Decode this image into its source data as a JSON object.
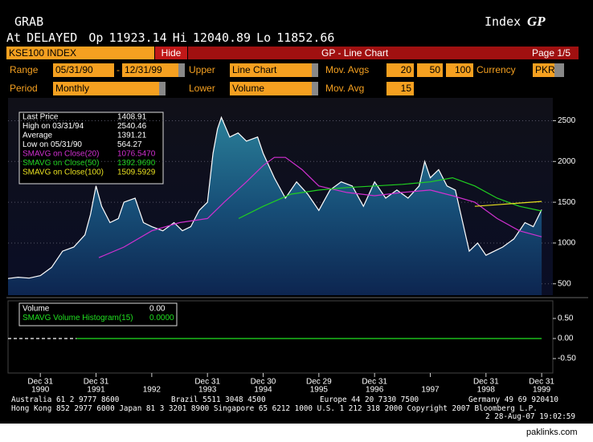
{
  "header": {
    "title": "GRAB",
    "index_label": "Index",
    "index_code": "GP",
    "status": "At DELAYED",
    "open_label": "Op",
    "open": "11923.14",
    "high_label": "Hi",
    "high": "12040.89",
    "low_label": "Lo",
    "low": "11852.66"
  },
  "toolbar": {
    "security": "KSE100 INDEX",
    "hide": "Hide",
    "screen": "GP - Line Chart",
    "page": "Page 1/5"
  },
  "controls": {
    "range_label": "Range",
    "start": "05/31/90",
    "sep": "-",
    "end": "12/31/99",
    "upper_label": "Upper",
    "upper": "Line Chart",
    "mov_avgs_label": "Mov. Avgs",
    "mov_avgs": [
      "20",
      "50",
      "100"
    ],
    "currency_label": "Currency",
    "currency": "PKR",
    "period_label": "Period",
    "period": "Monthly",
    "lower_label": "Lower",
    "lower": "Volume",
    "mov_avg_label": "Mov. Avg",
    "mov_avg": "15"
  },
  "chart_data": [
    {
      "type": "line",
      "grid": true,
      "xlim": [
        1990.42,
        2000.2
      ],
      "ylim": [
        360,
        2780
      ],
      "yticks": [
        500,
        1000,
        1500,
        2000,
        2500
      ],
      "xticks": [
        {
          "value": 1991.0,
          "day": "Dec 31",
          "label": "1990"
        },
        {
          "value": 1992.0,
          "day": "Dec 31",
          "label": "1991"
        },
        {
          "value": 1993.0,
          "label": "1992"
        },
        {
          "value": 1994.0,
          "day": "Dec 31",
          "label": "1993"
        },
        {
          "value": 1995.0,
          "day": "Dec 30",
          "label": "1994"
        },
        {
          "value": 1996.0,
          "day": "Dec 29",
          "label": "1995"
        },
        {
          "value": 1997.0,
          "day": "Dec 31",
          "label": "1996"
        },
        {
          "value": 1998.0,
          "label": "1997"
        },
        {
          "value": 1999.0,
          "day": "Dec 31",
          "label": "1998"
        },
        {
          "value": 2000.0,
          "day": "Dec 31",
          "label": "1999"
        }
      ],
      "stats": [
        {
          "label": "High on 03/31/94",
          "value": "2540.46"
        },
        {
          "label": "Average",
          "value": "1391.21"
        },
        {
          "label": "Low on 05/31/90",
          "value": "564.27"
        }
      ],
      "series": [
        {
          "name": "Last Price",
          "legend_value": "1408.91",
          "color": "#ffffff",
          "area": true,
          "x": [
            1990.42,
            1990.6,
            1990.8,
            1991.0,
            1991.2,
            1991.4,
            1991.6,
            1991.8,
            1991.9,
            1992.0,
            1992.1,
            1992.25,
            1992.4,
            1992.5,
            1992.7,
            1992.85,
            1993.0,
            1993.2,
            1993.4,
            1993.55,
            1993.7,
            1993.85,
            1994.0,
            1994.1,
            1994.18,
            1994.25,
            1994.4,
            1994.55,
            1994.7,
            1994.9,
            1995.0,
            1995.2,
            1995.4,
            1995.6,
            1995.8,
            1996.0,
            1996.2,
            1996.4,
            1996.6,
            1996.8,
            1997.0,
            1997.2,
            1997.4,
            1997.6,
            1997.8,
            1997.9,
            1998.0,
            1998.15,
            1998.3,
            1998.45,
            1998.55,
            1998.7,
            1998.85,
            1999.0,
            1999.15,
            1999.3,
            1999.5,
            1999.7,
            1999.85,
            2000.0
          ],
          "values": [
            564.27,
            580,
            570,
            600,
            700,
            900,
            950,
            1100,
            1350,
            1700,
            1450,
            1250,
            1300,
            1500,
            1550,
            1250,
            1200,
            1150,
            1250,
            1150,
            1200,
            1400,
            1500,
            2100,
            2400,
            2540.46,
            2300,
            2350,
            2250,
            2300,
            2100,
            1800,
            1550,
            1750,
            1600,
            1400,
            1650,
            1750,
            1700,
            1450,
            1750,
            1550,
            1650,
            1550,
            1700,
            2000,
            1800,
            1900,
            1700,
            1650,
            1350,
            900,
            1000,
            850,
            900,
            950,
            1050,
            1250,
            1200,
            1408.91
          ]
        },
        {
          "name": "SMAVG on Close(20)",
          "legend_value": "1076.5470",
          "color": "#d030d0",
          "x": [
            1992.05,
            1992.5,
            1993.0,
            1993.5,
            1994.0,
            1994.3,
            1994.7,
            1995.0,
            1995.2,
            1995.4,
            1995.7,
            1996.0,
            1996.5,
            1997.0,
            1997.5,
            1998.0,
            1998.4,
            1998.8,
            1999.2,
            1999.6,
            2000.0
          ],
          "values": [
            820,
            950,
            1150,
            1250,
            1300,
            1500,
            1750,
            1950,
            2050,
            2050,
            1900,
            1700,
            1620,
            1580,
            1620,
            1650,
            1580,
            1500,
            1300,
            1150,
            1076.547
          ]
        },
        {
          "name": "SMAVG on Close(50)",
          "legend_value": "1392.9690",
          "color": "#20d020",
          "x": [
            1994.56,
            1995.0,
            1995.5,
            1996.0,
            1996.5,
            1997.0,
            1997.5,
            1998.0,
            1998.4,
            1998.8,
            1999.2,
            1999.6,
            2000.0
          ],
          "values": [
            1300,
            1450,
            1600,
            1650,
            1680,
            1700,
            1720,
            1750,
            1800,
            1700,
            1550,
            1450,
            1392.969
          ]
        },
        {
          "name": "SMAVG on Close(100)",
          "legend_value": "1509.5929",
          "color": "#e8e020",
          "x": [
            1998.8,
            1999.2,
            1999.6,
            2000.0
          ],
          "values": [
            1450,
            1470,
            1490,
            1509.5929
          ]
        }
      ]
    },
    {
      "type": "line",
      "xlim": [
        1990.42,
        2000.2
      ],
      "ylim": [
        -0.86,
        0.94
      ],
      "yticks": [
        {
          "value": 0.5,
          "label": "0.50"
        },
        {
          "value": 0,
          "label": "0.00"
        },
        {
          "value": -0.5,
          "label": "-0.50"
        }
      ],
      "series": [
        {
          "name": "Volume",
          "legend_value": "0.00",
          "color": "#ffffff",
          "dashed": true,
          "x": [
            1990.42,
            1991.65
          ],
          "values": [
            0,
            0
          ]
        },
        {
          "name": "SMAVG Volume Histogram(15)",
          "legend_value": "0.0000",
          "color": "#20e020",
          "x": [
            1991.65,
            2000.0
          ],
          "values": [
            0,
            0
          ]
        }
      ]
    }
  ],
  "footer": {
    "line1": [
      "Australia 61 2 9777 8600",
      "Brazil 5511 3048 4500",
      "Europe 44 20 7330 7500",
      "Germany 49 69 920410"
    ],
    "line2": "Hong Kong 852 2977 6000 Japan 81 3 3201 8900 Singapore 65 6212 1000 U.S. 1 212 318 2000 Copyright 2007 Bloomberg L.P.",
    "line3": "2 28-Aug-07 19:02:59"
  },
  "watermark": "paklinks.com"
}
